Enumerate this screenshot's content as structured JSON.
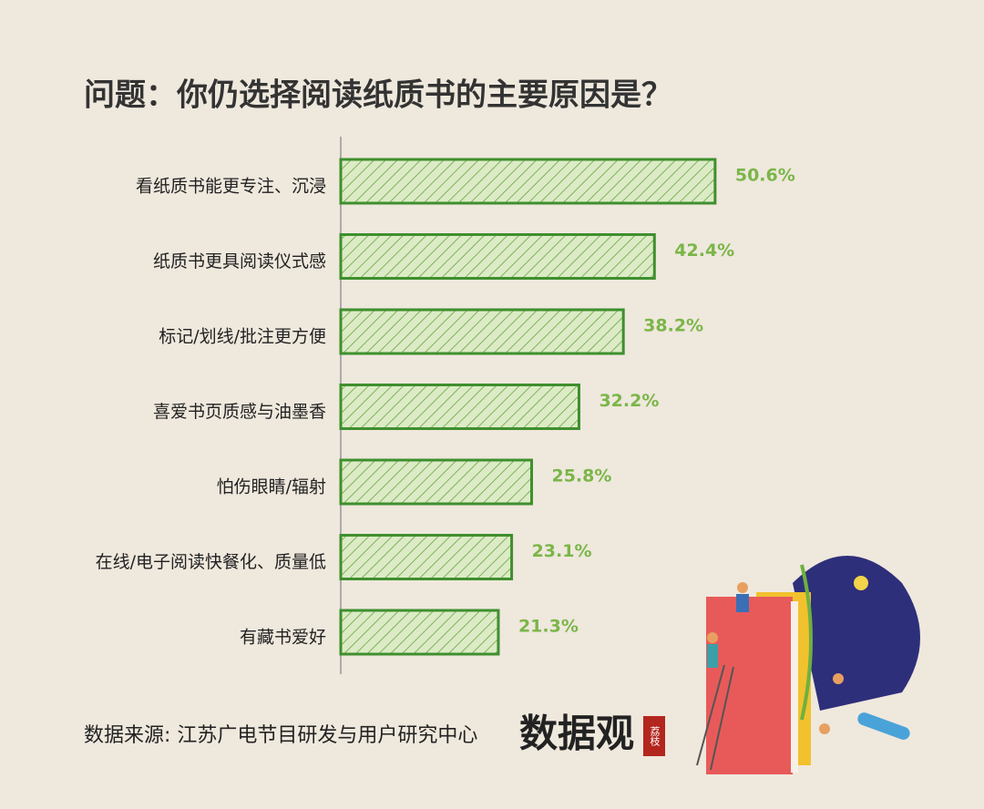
{
  "chart_data": {
    "type": "bar",
    "orientation": "horizontal",
    "title": "问题：你仍选择阅读纸质书的主要原因是？",
    "categories": [
      "看纸质书能更专注、沉浸",
      "纸质书更具阅读仪式感",
      "标记/划线/批注更方便",
      "喜爱书页质感与油墨香",
      "怕伤眼睛/辐射",
      "在线/电子阅读快餐化、质量低",
      "有藏书爱好"
    ],
    "values": [
      50.6,
      42.4,
      38.2,
      32.2,
      25.8,
      23.1,
      21.3
    ],
    "value_labels": [
      "50.6%",
      "42.4%",
      "38.2%",
      "32.2%",
      "25.8%",
      "23.1%",
      "21.3%"
    ],
    "color": "#3f8f2e",
    "label_color": "#7ab648",
    "source": "数据来源: 江苏广电节目研发与用户研究中心",
    "logo": "数据观",
    "logo_badge": "荔枝"
  }
}
